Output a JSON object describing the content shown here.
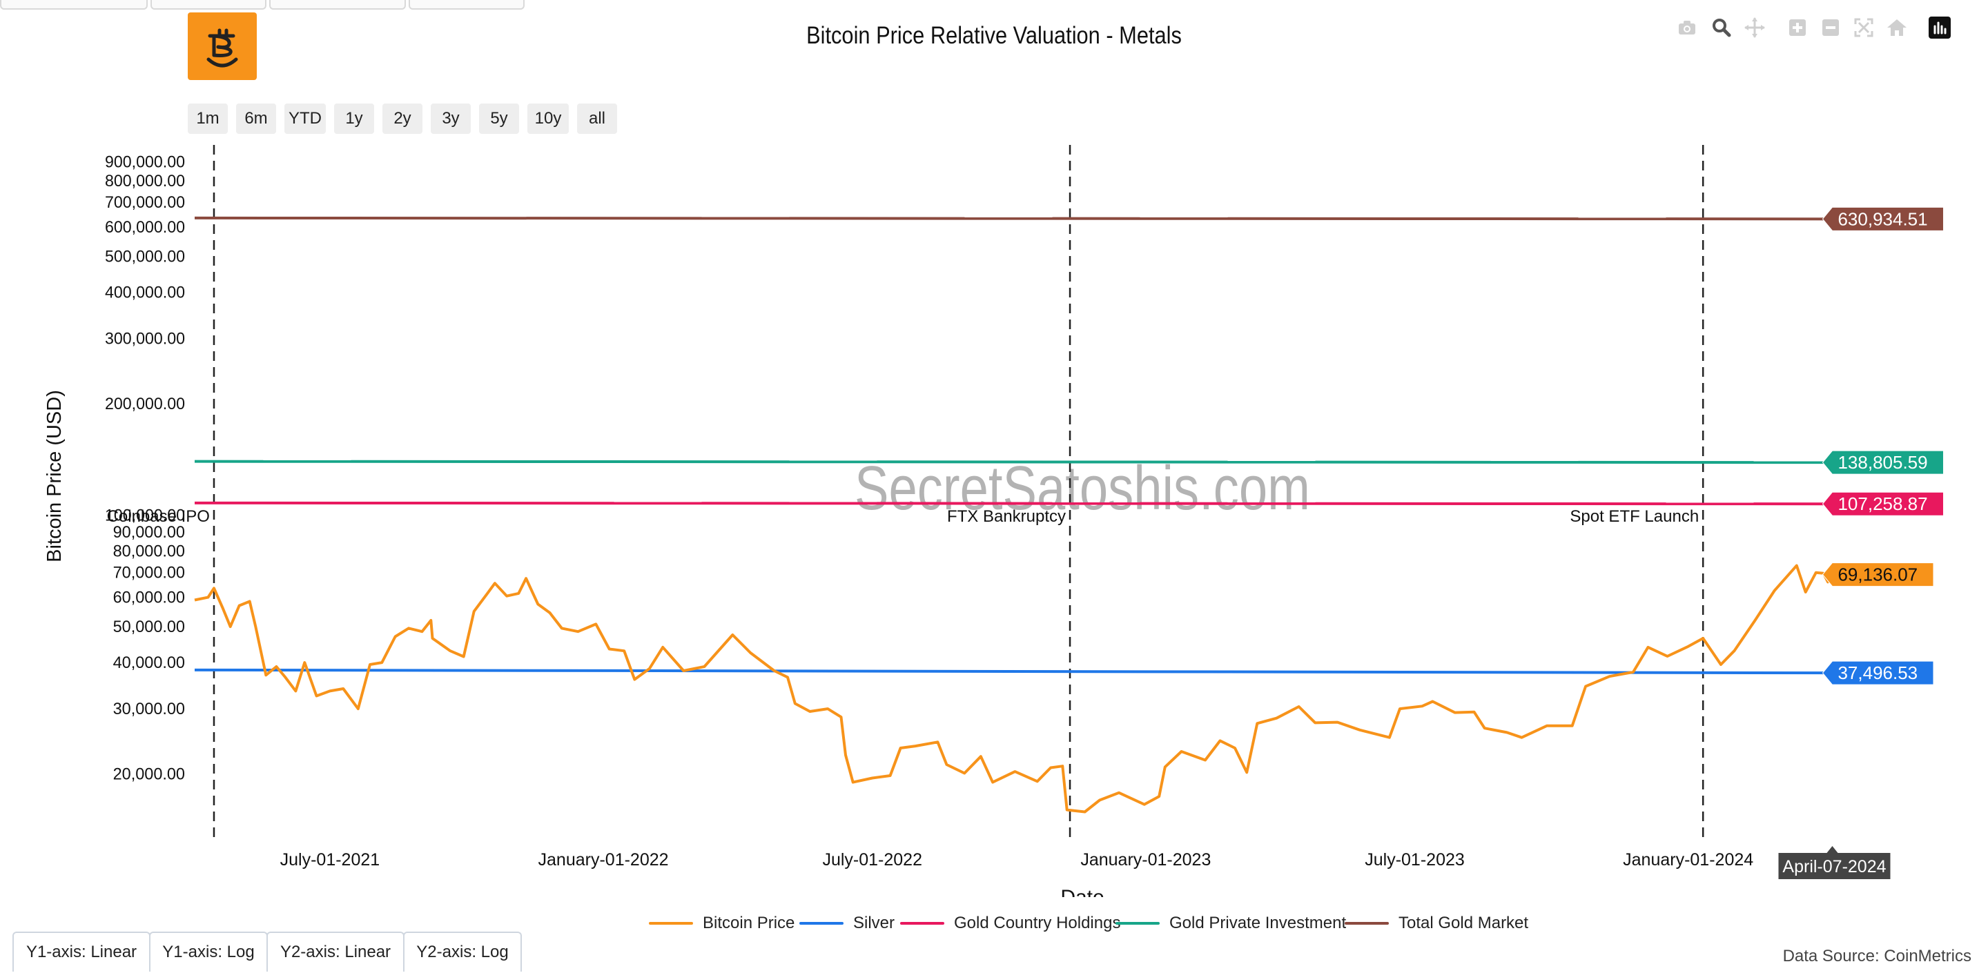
{
  "title": "Bitcoin Price Relative Valuation - Metals",
  "watermark": "SecretSatoshis.com",
  "source_note": "Data Source: CoinMetrics",
  "logo": {
    "icon": "bitcoin-smile-logo",
    "color": "#f7931a"
  },
  "modebar": [
    {
      "name": "camera-icon",
      "title": "Download plot as a png"
    },
    {
      "name": "zoom-icon",
      "title": "Zoom"
    },
    {
      "name": "pan-icon",
      "title": "Pan"
    },
    {
      "name": "zoom-in-icon",
      "title": "Zoom in"
    },
    {
      "name": "zoom-out-icon",
      "title": "Zoom out"
    },
    {
      "name": "autoscale-icon",
      "title": "Autoscale"
    },
    {
      "name": "home-icon",
      "title": "Reset axes"
    },
    {
      "name": "plotly-logo-icon",
      "title": "Produced with Plotly"
    }
  ],
  "range_buttons": [
    "1m",
    "6m",
    "YTD",
    "1y",
    "2y",
    "3y",
    "5y",
    "10y",
    "all"
  ],
  "axis_buttons": [
    "Y1-axis: Linear",
    "Y1-axis: Log",
    "Y2-axis: Linear",
    "Y2-axis: Log"
  ],
  "chart_data": {
    "type": "line",
    "title": "Bitcoin Price Relative Valuation - Metals",
    "xlabel": "Date",
    "ylabel": "Bitcoin Price (USD)",
    "y_scale": "log",
    "x_range": [
      "2021-04-01",
      "2024-04-30"
    ],
    "y_range": [
      13000,
      1000000
    ],
    "x_ticks": [
      {
        "date": "2021-07-01",
        "label": "July-01-2021"
      },
      {
        "date": "2022-01-01",
        "label": "January-01-2022"
      },
      {
        "date": "2022-07-01",
        "label": "July-01-2022"
      },
      {
        "date": "2023-01-01",
        "label": "January-01-2023"
      },
      {
        "date": "2023-07-01",
        "label": "July-01-2023"
      },
      {
        "date": "2024-01-01",
        "label": "January-01-2024"
      }
    ],
    "y_ticks": [
      {
        "value": 20000,
        "label": "20,000.00"
      },
      {
        "value": 30000,
        "label": "30,000.00"
      },
      {
        "value": 40000,
        "label": "40,000.00"
      },
      {
        "value": 50000,
        "label": "50,000.00"
      },
      {
        "value": 60000,
        "label": "60,000.00"
      },
      {
        "value": 70000,
        "label": "70,000.00"
      },
      {
        "value": 80000,
        "label": "80,000.00"
      },
      {
        "value": 90000,
        "label": "90,000.00"
      },
      {
        "value": 100000,
        "label": "100,000.00"
      },
      {
        "value": 200000,
        "label": "200,000.00"
      },
      {
        "value": 300000,
        "label": "300,000.00"
      },
      {
        "value": 400000,
        "label": "400,000.00"
      },
      {
        "value": 500000,
        "label": "500,000.00"
      },
      {
        "value": 600000,
        "label": "600,000.00"
      },
      {
        "value": 700000,
        "label": "700,000.00"
      },
      {
        "value": 800000,
        "label": "800,000.00"
      },
      {
        "value": 900000,
        "label": "900,000.00"
      }
    ],
    "grid": false,
    "legend_position": "bottom",
    "hover_date_label": "April-07-2024",
    "events": [
      {
        "date": "2021-04-14",
        "label": "Coinbase IPO"
      },
      {
        "date": "2022-11-11",
        "label": "FTX Bankruptcy"
      },
      {
        "date": "2024-01-11",
        "label": "Spot ETF Launch"
      }
    ],
    "series": [
      {
        "name": "Bitcoin Price",
        "color": "#f7931a",
        "end_label": "69,136.07",
        "points": [
          [
            "2021-04-01",
            59000
          ],
          [
            "2021-04-10",
            60000
          ],
          [
            "2021-04-14",
            63500
          ],
          [
            "2021-04-20",
            56000
          ],
          [
            "2021-04-25",
            50000
          ],
          [
            "2021-05-01",
            57000
          ],
          [
            "2021-05-08",
            58500
          ],
          [
            "2021-05-12",
            50000
          ],
          [
            "2021-05-19",
            37000
          ],
          [
            "2021-05-26",
            39000
          ],
          [
            "2021-06-01",
            36500
          ],
          [
            "2021-06-08",
            33500
          ],
          [
            "2021-06-14",
            40000
          ],
          [
            "2021-06-22",
            32500
          ],
          [
            "2021-07-01",
            33500
          ],
          [
            "2021-07-10",
            34000
          ],
          [
            "2021-07-20",
            30000
          ],
          [
            "2021-07-28",
            39500
          ],
          [
            "2021-08-05",
            40000
          ],
          [
            "2021-08-14",
            47000
          ],
          [
            "2021-08-23",
            49500
          ],
          [
            "2021-09-01",
            48500
          ],
          [
            "2021-09-07",
            52000
          ],
          [
            "2021-09-08",
            46500
          ],
          [
            "2021-09-20",
            43000
          ],
          [
            "2021-09-29",
            41500
          ],
          [
            "2021-10-06",
            55000
          ],
          [
            "2021-10-15",
            61500
          ],
          [
            "2021-10-20",
            65500
          ],
          [
            "2021-10-28",
            60500
          ],
          [
            "2021-11-05",
            61500
          ],
          [
            "2021-11-10",
            67500
          ],
          [
            "2021-11-18",
            57500
          ],
          [
            "2021-11-26",
            54500
          ],
          [
            "2021-12-04",
            49500
          ],
          [
            "2021-12-15",
            48500
          ],
          [
            "2021-12-27",
            50800
          ],
          [
            "2022-01-05",
            43500
          ],
          [
            "2022-01-15",
            43000
          ],
          [
            "2022-01-22",
            36000
          ],
          [
            "2022-02-01",
            38500
          ],
          [
            "2022-02-10",
            44000
          ],
          [
            "2022-02-24",
            38000
          ],
          [
            "2022-03-10",
            39000
          ],
          [
            "2022-03-29",
            47500
          ],
          [
            "2022-04-10",
            42500
          ],
          [
            "2022-04-26",
            38000
          ],
          [
            "2022-05-05",
            36500
          ],
          [
            "2022-05-10",
            31000
          ],
          [
            "2022-05-20",
            29500
          ],
          [
            "2022-06-01",
            30000
          ],
          [
            "2022-06-10",
            28500
          ],
          [
            "2022-06-13",
            22500
          ],
          [
            "2022-06-18",
            19000
          ],
          [
            "2022-07-01",
            19500
          ],
          [
            "2022-07-13",
            19800
          ],
          [
            "2022-07-20",
            23500
          ],
          [
            "2022-07-30",
            23800
          ],
          [
            "2022-08-14",
            24400
          ],
          [
            "2022-08-20",
            21200
          ],
          [
            "2022-09-01",
            20100
          ],
          [
            "2022-09-12",
            22300
          ],
          [
            "2022-09-20",
            19000
          ],
          [
            "2022-10-05",
            20300
          ],
          [
            "2022-10-20",
            19100
          ],
          [
            "2022-10-29",
            20800
          ],
          [
            "2022-11-06",
            21000
          ],
          [
            "2022-11-09",
            16000
          ],
          [
            "2022-11-21",
            15800
          ],
          [
            "2022-12-01",
            17000
          ],
          [
            "2022-12-14",
            17800
          ],
          [
            "2022-12-31",
            16550
          ],
          [
            "2023-01-10",
            17400
          ],
          [
            "2023-01-14",
            20900
          ],
          [
            "2023-01-25",
            23000
          ],
          [
            "2023-02-10",
            21800
          ],
          [
            "2023-02-20",
            24600
          ],
          [
            "2023-03-02",
            23500
          ],
          [
            "2023-03-10",
            20200
          ],
          [
            "2023-03-17",
            27400
          ],
          [
            "2023-03-30",
            28300
          ],
          [
            "2023-04-14",
            30400
          ],
          [
            "2023-04-25",
            27500
          ],
          [
            "2023-05-10",
            27600
          ],
          [
            "2023-05-25",
            26300
          ],
          [
            "2023-06-14",
            25100
          ],
          [
            "2023-06-21",
            30000
          ],
          [
            "2023-07-06",
            30500
          ],
          [
            "2023-07-13",
            31400
          ],
          [
            "2023-07-28",
            29300
          ],
          [
            "2023-08-10",
            29400
          ],
          [
            "2023-08-17",
            26600
          ],
          [
            "2023-09-01",
            25900
          ],
          [
            "2023-09-11",
            25100
          ],
          [
            "2023-09-28",
            27000
          ],
          [
            "2023-10-15",
            27000
          ],
          [
            "2023-10-24",
            34500
          ],
          [
            "2023-11-09",
            36700
          ],
          [
            "2023-11-25",
            37700
          ],
          [
            "2023-12-05",
            44000
          ],
          [
            "2023-12-18",
            41600
          ],
          [
            "2024-01-01",
            44200
          ],
          [
            "2024-01-11",
            46500
          ],
          [
            "2024-01-23",
            39500
          ],
          [
            "2024-02-01",
            43000
          ],
          [
            "2024-02-15",
            52000
          ],
          [
            "2024-02-28",
            62500
          ],
          [
            "2024-03-14",
            73100
          ],
          [
            "2024-03-20",
            62000
          ],
          [
            "2024-03-27",
            70000
          ],
          [
            "2024-04-01",
            69700
          ],
          [
            "2024-04-04",
            66000
          ],
          [
            "2024-04-07",
            69136.07
          ]
        ]
      },
      {
        "name": "Silver",
        "color": "#1f77e8",
        "end_label": "37,496.53",
        "points": [
          [
            "2021-04-01",
            38200
          ],
          [
            "2024-04-07",
            37496.53
          ]
        ]
      },
      {
        "name": "Gold Country Holdings",
        "color": "#e8185e",
        "end_label": "107,258.87",
        "points": [
          [
            "2021-04-01",
            107900
          ],
          [
            "2024-04-07",
            107258.87
          ]
        ]
      },
      {
        "name": "Gold Private Investment",
        "color": "#17a589",
        "end_label": "138,805.59",
        "points": [
          [
            "2021-04-01",
            139700
          ],
          [
            "2024-04-07",
            138805.59
          ]
        ]
      },
      {
        "name": "Total Gold Market",
        "color": "#8b4a3e",
        "end_label": "630,934.51",
        "points": [
          [
            "2021-04-01",
            634800
          ],
          [
            "2024-04-07",
            630934.51
          ]
        ]
      }
    ]
  }
}
